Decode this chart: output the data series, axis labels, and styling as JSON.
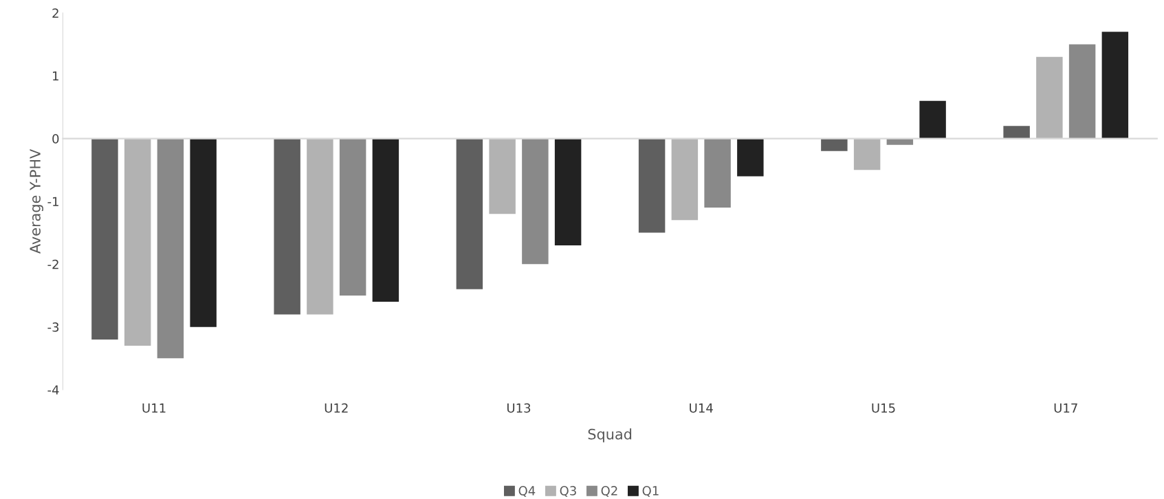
{
  "chart_data": {
    "type": "bar",
    "xlabel": "Squad",
    "ylabel": "Average Y-PHV",
    "categories": [
      "U11",
      "U12",
      "U13",
      "U14",
      "U15",
      "U17"
    ],
    "series": [
      {
        "name": "Q4",
        "color": "#5f5f5f",
        "values": [
          -3.2,
          -2.8,
          -2.4,
          -1.5,
          -0.2,
          0.2
        ]
      },
      {
        "name": "Q3",
        "color": "#b2b2b2",
        "values": [
          -3.3,
          -2.8,
          -1.2,
          -1.3,
          -0.5,
          1.3
        ]
      },
      {
        "name": "Q2",
        "color": "#898989",
        "values": [
          -3.5,
          -2.5,
          -2.0,
          -1.1,
          -0.1,
          1.5
        ]
      },
      {
        "name": "Q1",
        "color": "#222222",
        "values": [
          -3.0,
          -2.6,
          -1.7,
          -0.6,
          0.6,
          1.7
        ]
      }
    ],
    "ylim": [
      -4,
      2
    ],
    "yticks": [
      -4,
      -3,
      -2,
      -1,
      0,
      1,
      2
    ],
    "legend": "bottom"
  }
}
